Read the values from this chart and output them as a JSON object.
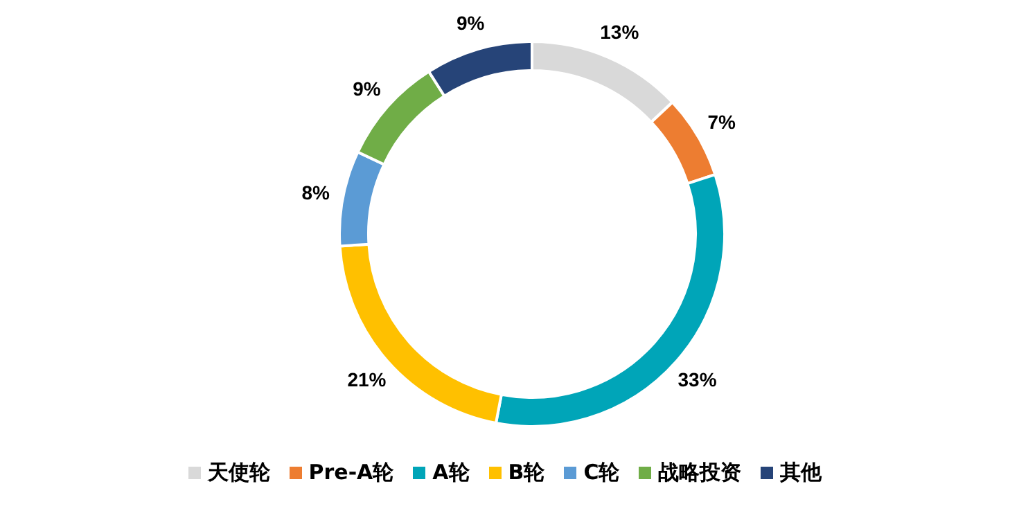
{
  "chart_data": {
    "type": "donut",
    "categories": [
      "天使轮",
      "Pre-A轮",
      "A轮",
      "B轮",
      "C轮",
      "战略投资",
      "其他"
    ],
    "values": [
      13,
      7,
      33,
      21,
      8,
      9,
      9
    ],
    "colors": [
      "#d9d9d9",
      "#ed7d31",
      "#00a5b8",
      "#ffc000",
      "#5b9bd5",
      "#70ad47",
      "#264478"
    ],
    "value_labels": [
      "13%",
      "7%",
      "33%",
      "21%",
      "8%",
      "9%",
      "9%"
    ],
    "legend": "bottom"
  }
}
